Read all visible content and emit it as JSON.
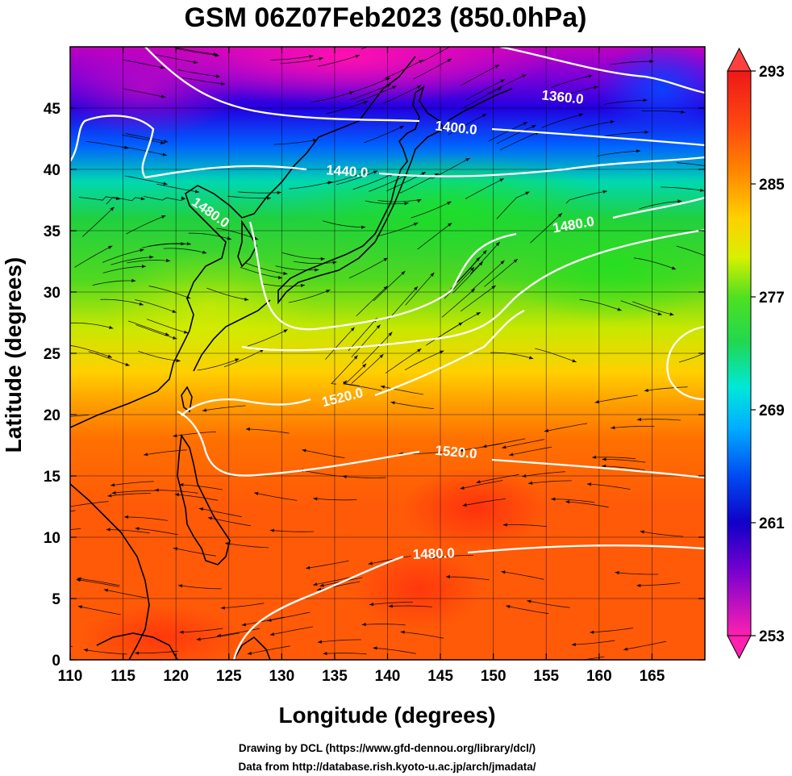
{
  "title": "GSM 06Z07Feb2023 (850.0hPa)",
  "xlabel": "Longitude (degrees)",
  "ylabel": "Latitude  (degrees)",
  "credits": [
    "Drawing by DCL (https://www.gfd-dennou.org/library/dcl/)",
    "Data from http://database.rish.kyoto-u.ac.jp/arch/jmadata/"
  ],
  "x_ticks": [
    "110",
    "115",
    "120",
    "125",
    "130",
    "135",
    "140",
    "145",
    "150",
    "155",
    "160",
    "165"
  ],
  "y_ticks": [
    "0",
    "5",
    "10",
    "15",
    "20",
    "25",
    "30",
    "35",
    "40",
    "45"
  ],
  "colorbar": {
    "labels": [
      "293",
      "285",
      "277",
      "269",
      "261",
      "253"
    ],
    "stops": [
      "#ff1f9a",
      "#c400d8",
      "#5a00d8",
      "#0018e0",
      "#0c6cff",
      "#00c8ff",
      "#00e8d0",
      "#1ee050",
      "#20e020",
      "#b8f000",
      "#ffe600",
      "#ffb000",
      "#ff7a00",
      "#ff3a10",
      "#ee1818"
    ]
  },
  "contours": {
    "c1360": "1360.0",
    "c1400": "1400.0",
    "c1440": "1440.0",
    "c1480_north": "1480.0",
    "c1480_west": "1480.0",
    "c1520_a": "1520.0",
    "c1520_b": "1520.0",
    "c1480_south": "1480.0"
  },
  "map_extent": {
    "lon": [
      110,
      170
    ],
    "lat": [
      0,
      50
    ]
  },
  "colorbar_range": [
    253,
    293
  ]
}
